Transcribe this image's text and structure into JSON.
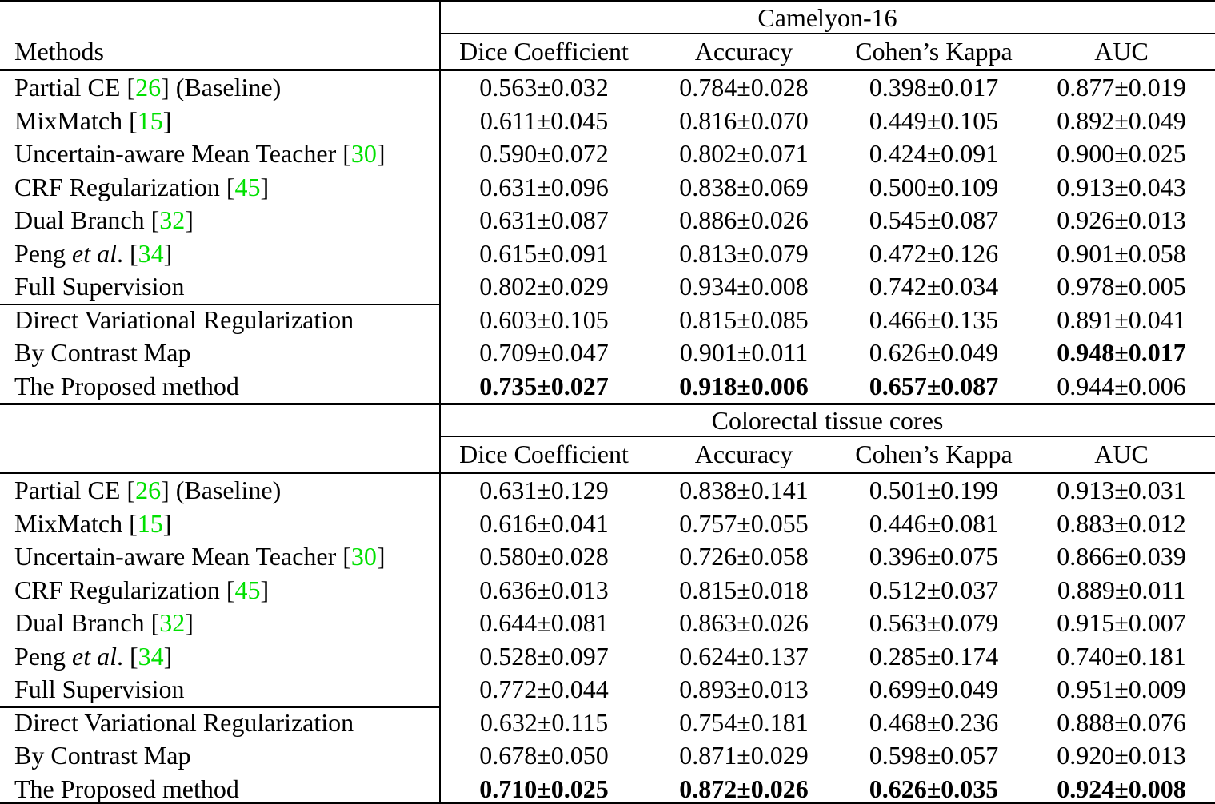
{
  "table": {
    "methods_header": "Methods",
    "citation_color": "#00e000",
    "sections": [
      {
        "dataset": "Camelyon-16",
        "columns": [
          "Dice Coefficient",
          "Accuracy",
          "Cohen’s Kappa",
          "AUC"
        ],
        "rows": [
          {
            "pre": "Partial CE [",
            "cite": "26",
            "post": "] (Baseline)",
            "values": [
              "0.563±0.032",
              "0.784±0.028",
              "0.398±0.017",
              "0.877±0.019"
            ]
          },
          {
            "pre": "MixMatch [",
            "cite": "15",
            "post": "]",
            "values": [
              "0.611±0.045",
              "0.816±0.070",
              "0.449±0.105",
              "0.892±0.049"
            ]
          },
          {
            "pre": "Uncertain-aware Mean Teacher [",
            "cite": "30",
            "post": "]",
            "values": [
              "0.590±0.072",
              "0.802±0.071",
              "0.424±0.091",
              "0.900±0.025"
            ]
          },
          {
            "pre": "CRF Regularization [",
            "cite": "45",
            "post": "]",
            "values": [
              "0.631±0.096",
              "0.838±0.069",
              "0.500±0.109",
              "0.913±0.043"
            ]
          },
          {
            "pre": "Dual Branch [",
            "cite": "32",
            "post": "]",
            "values": [
              "0.631±0.087",
              "0.886±0.026",
              "0.545±0.087",
              "0.926±0.013"
            ]
          },
          {
            "pre": "Peng ",
            "italic": "et al",
            "mid": ". [",
            "cite": "34",
            "post": "]",
            "values": [
              "0.615±0.091",
              "0.813±0.079",
              "0.472±0.126",
              "0.901±0.058"
            ]
          },
          {
            "pre": "Full Supervision",
            "values": [
              "0.802±0.029",
              "0.934±0.008",
              "0.742±0.034",
              "0.978±0.005"
            ]
          },
          {
            "pre": "Direct Variational Regularization",
            "values": [
              "0.603±0.105",
              "0.815±0.085",
              "0.466±0.135",
              "0.891±0.041"
            ]
          },
          {
            "pre": "By Contrast Map",
            "values": [
              "0.709±0.047",
              "0.901±0.011",
              "0.626±0.049",
              "0.948±0.017"
            ],
            "bold": [
              false,
              false,
              false,
              true
            ]
          },
          {
            "pre": "The Proposed method",
            "values": [
              "0.735±0.027",
              "0.918±0.006",
              "0.657±0.087",
              "0.944±0.006"
            ],
            "bold": [
              true,
              true,
              true,
              false
            ]
          }
        ]
      },
      {
        "dataset": "Colorectal tissue cores",
        "columns": [
          "Dice Coefficient",
          "Accuracy",
          "Cohen’s Kappa",
          "AUC"
        ],
        "rows": [
          {
            "pre": "Partial CE [",
            "cite": "26",
            "post": "] (Baseline)",
            "values": [
              "0.631±0.129",
              "0.838±0.141",
              "0.501±0.199",
              "0.913±0.031"
            ]
          },
          {
            "pre": "MixMatch [",
            "cite": "15",
            "post": "]",
            "values": [
              "0.616±0.041",
              "0.757±0.055",
              "0.446±0.081",
              "0.883±0.012"
            ]
          },
          {
            "pre": "Uncertain-aware Mean Teacher [",
            "cite": "30",
            "post": "]",
            "values": [
              "0.580±0.028",
              "0.726±0.058",
              "0.396±0.075",
              "0.866±0.039"
            ]
          },
          {
            "pre": "CRF Regularization [",
            "cite": "45",
            "post": "]",
            "values": [
              "0.636±0.013",
              "0.815±0.018",
              "0.512±0.037",
              "0.889±0.011"
            ]
          },
          {
            "pre": "Dual Branch [",
            "cite": "32",
            "post": "]",
            "values": [
              "0.644±0.081",
              "0.863±0.026",
              "0.563±0.079",
              "0.915±0.007"
            ]
          },
          {
            "pre": "Peng ",
            "italic": "et al",
            "mid": ". [",
            "cite": "34",
            "post": "]",
            "values": [
              "0.528±0.097",
              "0.624±0.137",
              "0.285±0.174",
              "0.740±0.181"
            ]
          },
          {
            "pre": "Full Supervision",
            "values": [
              "0.772±0.044",
              "0.893±0.013",
              "0.699±0.049",
              "0.951±0.009"
            ]
          },
          {
            "pre": "Direct Variational Regularization",
            "values": [
              "0.632±0.115",
              "0.754±0.181",
              "0.468±0.236",
              "0.888±0.076"
            ]
          },
          {
            "pre": "By Contrast Map",
            "values": [
              "0.678±0.050",
              "0.871±0.029",
              "0.598±0.057",
              "0.920±0.013"
            ]
          },
          {
            "pre": "The Proposed method",
            "values": [
              "0.710±0.025",
              "0.872±0.026",
              "0.626±0.035",
              "0.924±0.008"
            ],
            "bold": [
              true,
              true,
              true,
              true
            ]
          }
        ]
      }
    ]
  }
}
